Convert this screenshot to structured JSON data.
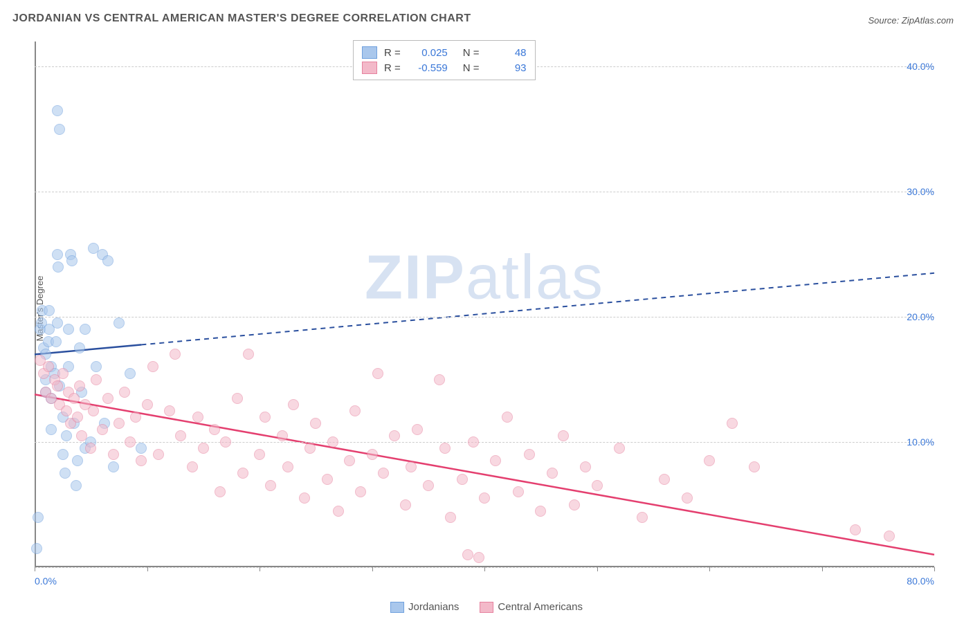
{
  "title": "JORDANIAN VS CENTRAL AMERICAN MASTER'S DEGREE CORRELATION CHART",
  "source_label": "Source: ",
  "source_name": "ZipAtlas.com",
  "ylabel": "Master's Degree",
  "watermark": "ZIPatlas",
  "chart": {
    "type": "scatter",
    "xlim": [
      0,
      80
    ],
    "ylim": [
      0,
      42
    ],
    "xticks": [
      0,
      10,
      20,
      30,
      40,
      50,
      60,
      70,
      80
    ],
    "xtick_labels_shown": {
      "0": "0.0%",
      "80": "80.0%"
    },
    "yticks": [
      10,
      20,
      30,
      40
    ],
    "ytick_labels": [
      "10.0%",
      "20.0%",
      "30.0%",
      "40.0%"
    ],
    "grid_dashes": [
      0,
      10,
      20,
      30,
      40
    ],
    "grid_color": "#cccccc",
    "background_color": "#ffffff",
    "axis_color": "#888888",
    "marker_radius": 8,
    "marker_opacity": 0.55,
    "series": [
      {
        "name": "Jordanians",
        "color_fill": "#a9c7ec",
        "color_stroke": "#6fa0dd",
        "R": "0.025",
        "N": "48",
        "trend": {
          "y_at_x0": 17.0,
          "y_at_xmax": 23.5,
          "solid_until_x": 9.5,
          "color": "#2a4f9e"
        },
        "points": [
          [
            0.2,
            1.5
          ],
          [
            0.3,
            4.0
          ],
          [
            0.8,
            17.5
          ],
          [
            0.5,
            19
          ],
          [
            0.6,
            19.5
          ],
          [
            0.7,
            20.5
          ],
          [
            1.0,
            14.0
          ],
          [
            1.0,
            15.0
          ],
          [
            1.0,
            17.0
          ],
          [
            1.2,
            18.0
          ],
          [
            1.3,
            19.0
          ],
          [
            1.3,
            20.5
          ],
          [
            1.5,
            16.0
          ],
          [
            1.5,
            13.5
          ],
          [
            1.5,
            11.0
          ],
          [
            1.8,
            15.5
          ],
          [
            1.9,
            18.0
          ],
          [
            2.0,
            19.5
          ],
          [
            2.0,
            25.0
          ],
          [
            2.1,
            24.0
          ],
          [
            2.2,
            14.5
          ],
          [
            2.5,
            12.0
          ],
          [
            2.5,
            9.0
          ],
          [
            2.7,
            7.5
          ],
          [
            2.8,
            10.5
          ],
          [
            3.0,
            16.0
          ],
          [
            3.0,
            19.0
          ],
          [
            3.2,
            25.0
          ],
          [
            3.3,
            24.5
          ],
          [
            3.5,
            11.5
          ],
          [
            3.7,
            6.5
          ],
          [
            3.8,
            8.5
          ],
          [
            4.0,
            17.5
          ],
          [
            4.2,
            14.0
          ],
          [
            4.5,
            9.5
          ],
          [
            4.5,
            19.0
          ],
          [
            5.0,
            10.0
          ],
          [
            5.2,
            25.5
          ],
          [
            5.5,
            16.0
          ],
          [
            6.0,
            25.0
          ],
          [
            6.2,
            11.5
          ],
          [
            6.5,
            24.5
          ],
          [
            7.0,
            8.0
          ],
          [
            7.5,
            19.5
          ],
          [
            8.5,
            15.5
          ],
          [
            9.5,
            9.5
          ],
          [
            2.0,
            36.5
          ],
          [
            2.2,
            35.0
          ]
        ]
      },
      {
        "name": "Central Americans",
        "color_fill": "#f3b9c9",
        "color_stroke": "#e6819e",
        "R": "-0.559",
        "N": "93",
        "trend": {
          "y_at_x0": 13.8,
          "y_at_xmax": 1.0,
          "solid_until_x": 80,
          "color": "#e43f6f"
        },
        "points": [
          [
            0.5,
            16.5
          ],
          [
            0.8,
            15.5
          ],
          [
            1.0,
            14.0
          ],
          [
            1.2,
            16.0
          ],
          [
            1.5,
            13.5
          ],
          [
            1.8,
            15.0
          ],
          [
            2.0,
            14.5
          ],
          [
            2.2,
            13.0
          ],
          [
            2.5,
            15.5
          ],
          [
            2.8,
            12.5
          ],
          [
            3.0,
            14.0
          ],
          [
            3.2,
            11.5
          ],
          [
            3.5,
            13.5
          ],
          [
            3.8,
            12.0
          ],
          [
            4.0,
            14.5
          ],
          [
            4.2,
            10.5
          ],
          [
            4.5,
            13.0
          ],
          [
            5.0,
            9.5
          ],
          [
            5.2,
            12.5
          ],
          [
            5.5,
            15.0
          ],
          [
            6.0,
            11.0
          ],
          [
            6.5,
            13.5
          ],
          [
            7.0,
            9.0
          ],
          [
            7.5,
            11.5
          ],
          [
            8.0,
            14.0
          ],
          [
            8.5,
            10.0
          ],
          [
            9.0,
            12.0
          ],
          [
            9.5,
            8.5
          ],
          [
            10.0,
            13.0
          ],
          [
            10.5,
            16.0
          ],
          [
            11.0,
            9.0
          ],
          [
            12.0,
            12.5
          ],
          [
            12.5,
            17.0
          ],
          [
            13.0,
            10.5
          ],
          [
            14.0,
            8.0
          ],
          [
            14.5,
            12.0
          ],
          [
            15.0,
            9.5
          ],
          [
            16.0,
            11.0
          ],
          [
            16.5,
            6.0
          ],
          [
            17.0,
            10.0
          ],
          [
            18.0,
            13.5
          ],
          [
            18.5,
            7.5
          ],
          [
            19.0,
            17.0
          ],
          [
            20.0,
            9.0
          ],
          [
            20.5,
            12.0
          ],
          [
            21.0,
            6.5
          ],
          [
            22.0,
            10.5
          ],
          [
            22.5,
            8.0
          ],
          [
            23.0,
            13.0
          ],
          [
            24.0,
            5.5
          ],
          [
            24.5,
            9.5
          ],
          [
            25.0,
            11.5
          ],
          [
            26.0,
            7.0
          ],
          [
            26.5,
            10.0
          ],
          [
            27.0,
            4.5
          ],
          [
            28.0,
            8.5
          ],
          [
            28.5,
            12.5
          ],
          [
            29.0,
            6.0
          ],
          [
            30.0,
            9.0
          ],
          [
            30.5,
            15.5
          ],
          [
            31.0,
            7.5
          ],
          [
            32.0,
            10.5
          ],
          [
            33.0,
            5.0
          ],
          [
            33.5,
            8.0
          ],
          [
            34.0,
            11.0
          ],
          [
            35.0,
            6.5
          ],
          [
            36.0,
            15.0
          ],
          [
            36.5,
            9.5
          ],
          [
            37.0,
            4.0
          ],
          [
            38.0,
            7.0
          ],
          [
            38.5,
            1.0
          ],
          [
            39.0,
            10.0
          ],
          [
            40.0,
            5.5
          ],
          [
            41.0,
            8.5
          ],
          [
            42.0,
            12.0
          ],
          [
            43.0,
            6.0
          ],
          [
            44.0,
            9.0
          ],
          [
            45.0,
            4.5
          ],
          [
            46.0,
            7.5
          ],
          [
            47.0,
            10.5
          ],
          [
            48.0,
            5.0
          ],
          [
            49.0,
            8.0
          ],
          [
            50.0,
            6.5
          ],
          [
            52.0,
            9.5
          ],
          [
            54.0,
            4.0
          ],
          [
            56.0,
            7.0
          ],
          [
            58.0,
            5.5
          ],
          [
            60.0,
            8.5
          ],
          [
            62.0,
            11.5
          ],
          [
            64.0,
            8.0
          ],
          [
            73.0,
            3.0
          ],
          [
            76.0,
            2.5
          ],
          [
            39.5,
            0.8
          ]
        ]
      }
    ]
  },
  "legend_labels": {
    "R": "R  =",
    "N": "N  ="
  }
}
